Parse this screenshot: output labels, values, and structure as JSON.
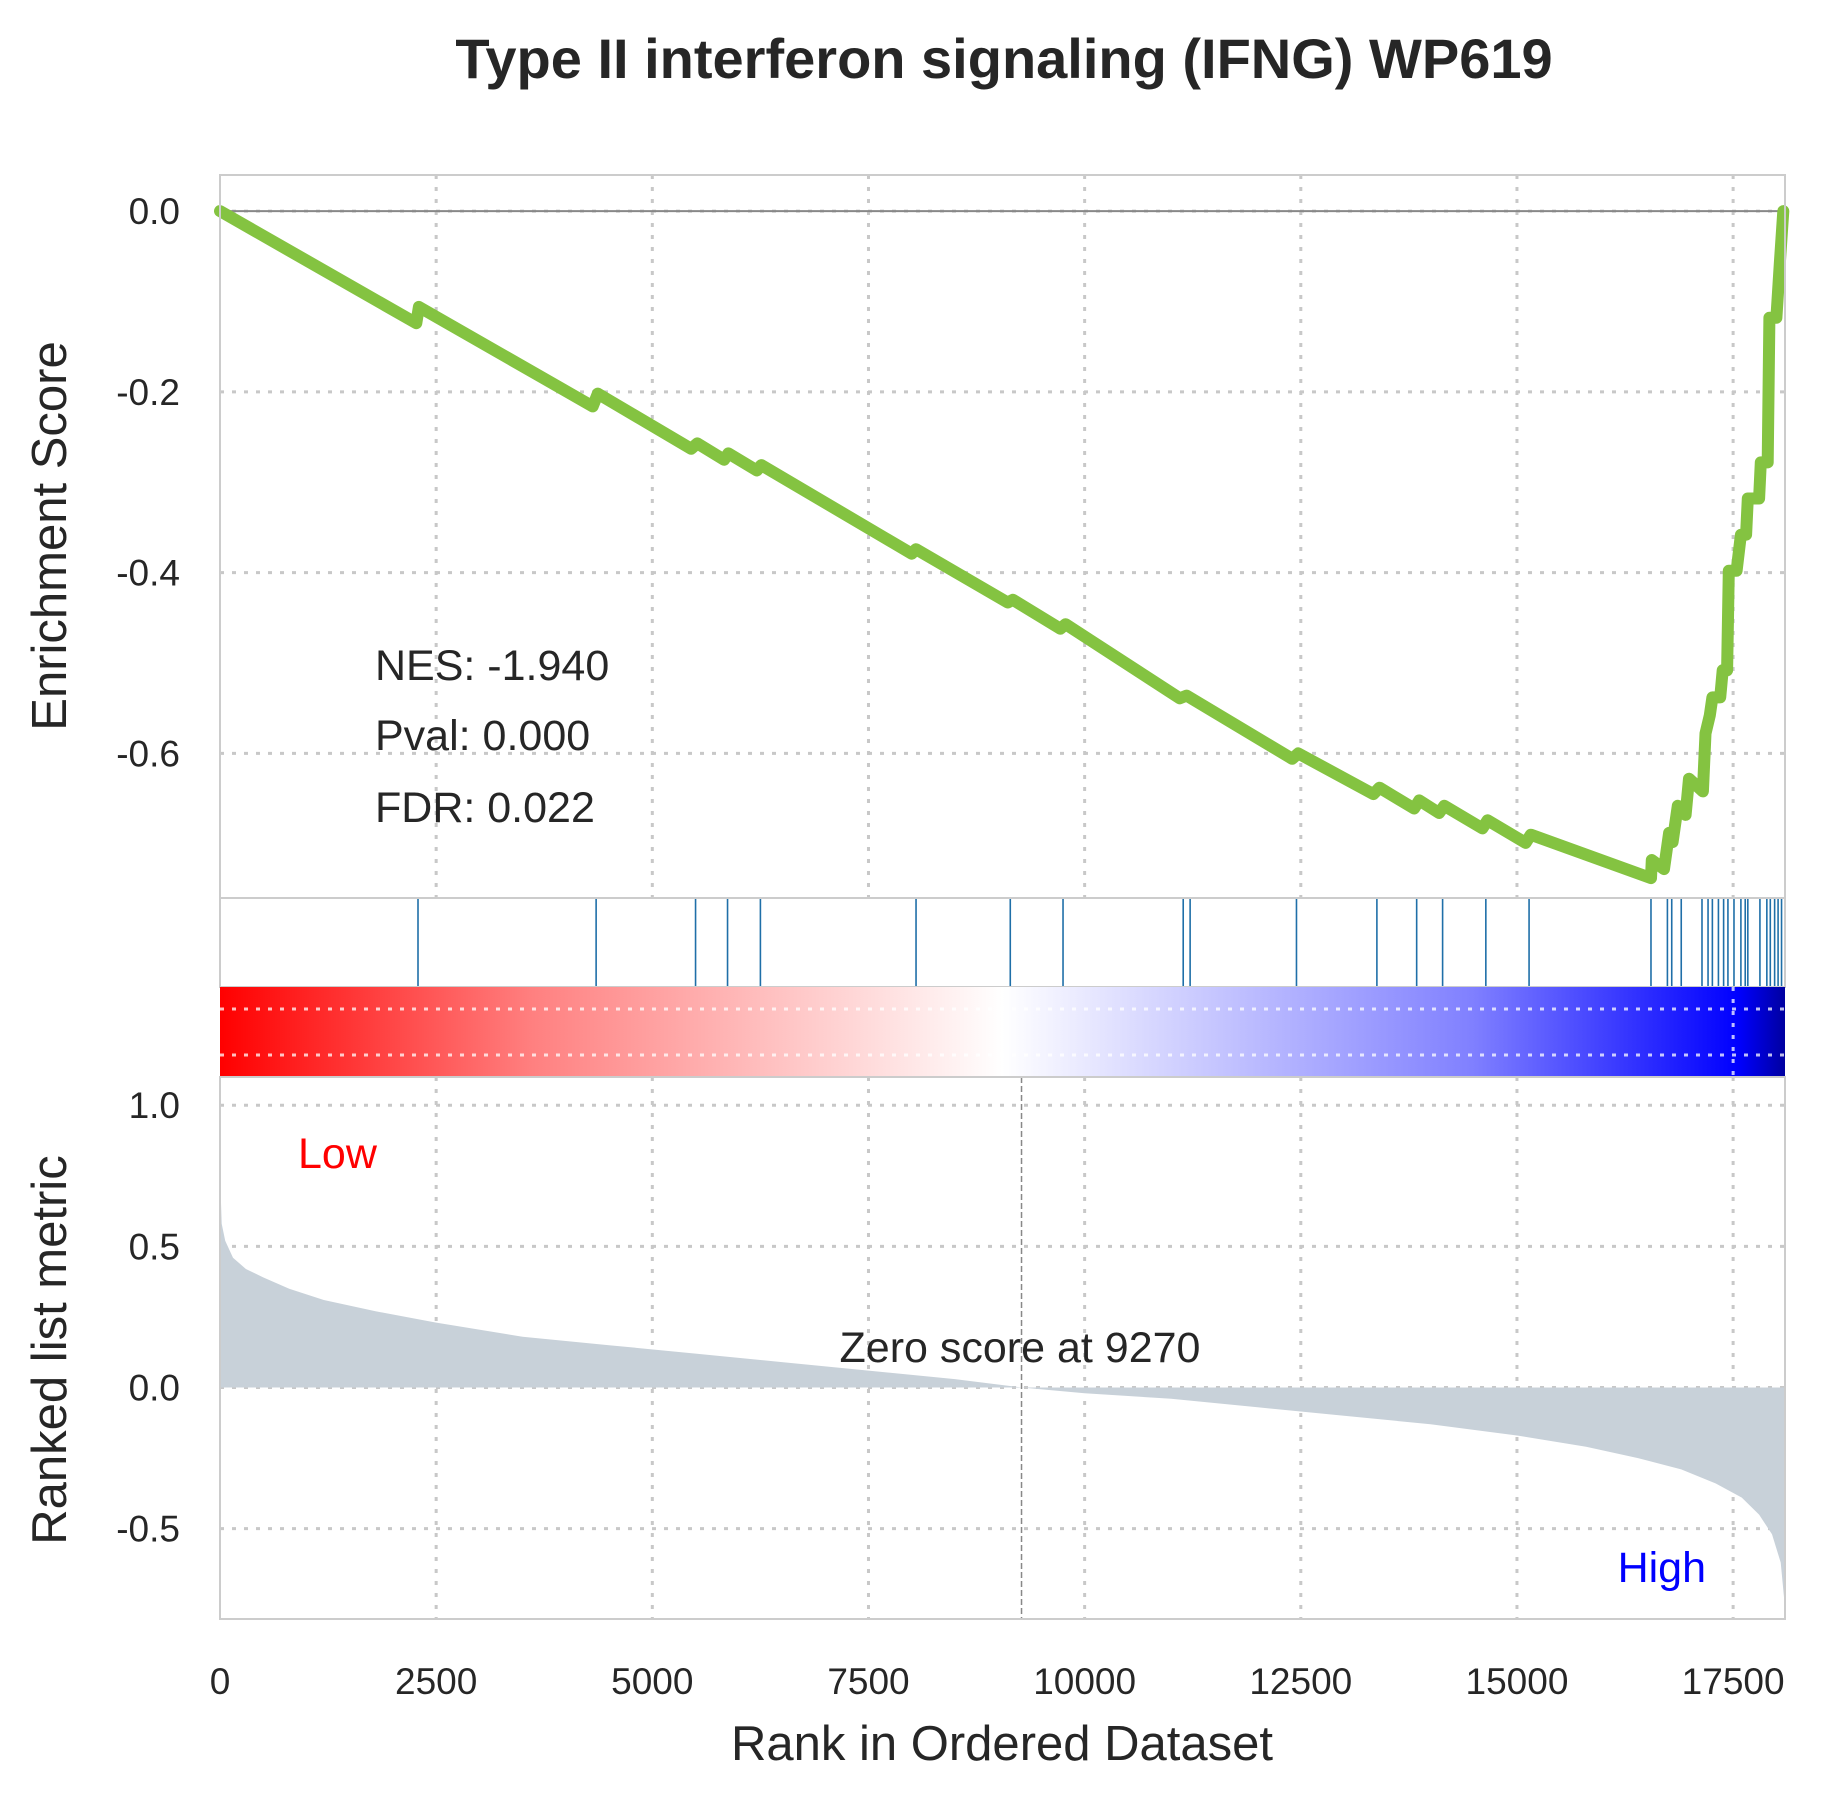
{
  "chart_data": {
    "type": "line",
    "title": "Type II interferon signaling (IFNG) WP619",
    "xlabel": "Rank in Ordered Dataset",
    "xlim": [
      0,
      18100
    ],
    "x_ticks": [
      "0",
      "2500",
      "5000",
      "7500",
      "10000",
      "12500",
      "15000",
      "17500"
    ],
    "grid": true,
    "colors": {
      "enrichment_line": "#84c341",
      "hits": "#1f6fa8",
      "metric_fill": "#c8d1d9",
      "low_label": "#ff0000",
      "high_label": "#0000ff",
      "zero_line": "#888888"
    },
    "enrichment": {
      "ylabel": "Enrichment Score",
      "ylim": [
        -0.76,
        0.04
      ],
      "y_ticks": [
        "0.0",
        "-0.2",
        "-0.4",
        "-0.6"
      ],
      "stats": [
        "NES: -1.940",
        "Pval: 0.000",
        "FDR: 0.022"
      ],
      "series": [
        {
          "x": [
            0,
            2270,
            2300,
            4310,
            4370,
            5450,
            5520,
            5830,
            5880,
            6210,
            6260,
            8000,
            8050,
            9110,
            9170,
            9720,
            9780,
            11100,
            11180,
            12400,
            12470,
            13340,
            13410,
            13810,
            13870,
            14100,
            14160,
            14600,
            14660,
            15100,
            15160,
            16550,
            16560,
            16700,
            16760,
            16800,
            16860,
            16950,
            16990,
            17150,
            17180,
            17230,
            17260,
            17350,
            17380,
            17430,
            17450,
            17540,
            17590,
            17650,
            17670,
            17800,
            17820,
            17900,
            17920,
            18000,
            18040,
            18080
          ],
          "y": [
            0.0,
            -0.124,
            -0.106,
            -0.216,
            -0.202,
            -0.263,
            -0.257,
            -0.275,
            -0.268,
            -0.287,
            -0.281,
            -0.379,
            -0.374,
            -0.433,
            -0.43,
            -0.462,
            -0.457,
            -0.539,
            -0.536,
            -0.606,
            -0.6,
            -0.645,
            -0.638,
            -0.661,
            -0.652,
            -0.666,
            -0.658,
            -0.683,
            -0.674,
            -0.699,
            -0.69,
            -0.738,
            -0.718,
            -0.728,
            -0.688,
            -0.698,
            -0.658,
            -0.668,
            -0.628,
            -0.642,
            -0.578,
            -0.558,
            -0.538,
            -0.538,
            -0.508,
            -0.508,
            -0.398,
            -0.398,
            -0.358,
            -0.358,
            -0.318,
            -0.318,
            -0.278,
            -0.278,
            -0.118,
            -0.118,
            -0.058,
            0.0
          ]
        }
      ]
    },
    "hits": {
      "ranks": [
        2290,
        4350,
        5500,
        5870,
        6250,
        8050,
        9140,
        9750,
        11140,
        11220,
        12450,
        13380,
        13840,
        14140,
        14640,
        15140,
        16550,
        16740,
        16790,
        16900,
        17140,
        17210,
        17260,
        17330,
        17390,
        17440,
        17510,
        17590,
        17640,
        17670,
        17810,
        17890,
        17930,
        17980,
        18020,
        18060
      ]
    },
    "ranked_metric": {
      "ylabel": "Ranked list metric",
      "ylim": [
        -0.82,
        1.1
      ],
      "y_ticks": [
        "1.0",
        "0.5",
        "0.0",
        "-0.5"
      ],
      "low_label": "Low",
      "high_label": "High",
      "zero_text": "Zero score at 9270",
      "zero_rank": 9270,
      "x": [
        0,
        20,
        60,
        150,
        300,
        500,
        800,
        1200,
        1800,
        2500,
        3500,
        4500,
        5500,
        6500,
        7500,
        8500,
        9270,
        10000,
        11000,
        12000,
        13000,
        14000,
        15000,
        15800,
        16400,
        16900,
        17300,
        17600,
        17800,
        17950,
        18050,
        18100
      ],
      "values": [
        0.76,
        0.58,
        0.52,
        0.46,
        0.42,
        0.39,
        0.35,
        0.31,
        0.27,
        0.23,
        0.18,
        0.15,
        0.12,
        0.09,
        0.06,
        0.03,
        0.0,
        -0.02,
        -0.04,
        -0.07,
        -0.1,
        -0.13,
        -0.17,
        -0.21,
        -0.25,
        -0.29,
        -0.34,
        -0.39,
        -0.45,
        -0.52,
        -0.62,
        -0.78
      ]
    }
  }
}
